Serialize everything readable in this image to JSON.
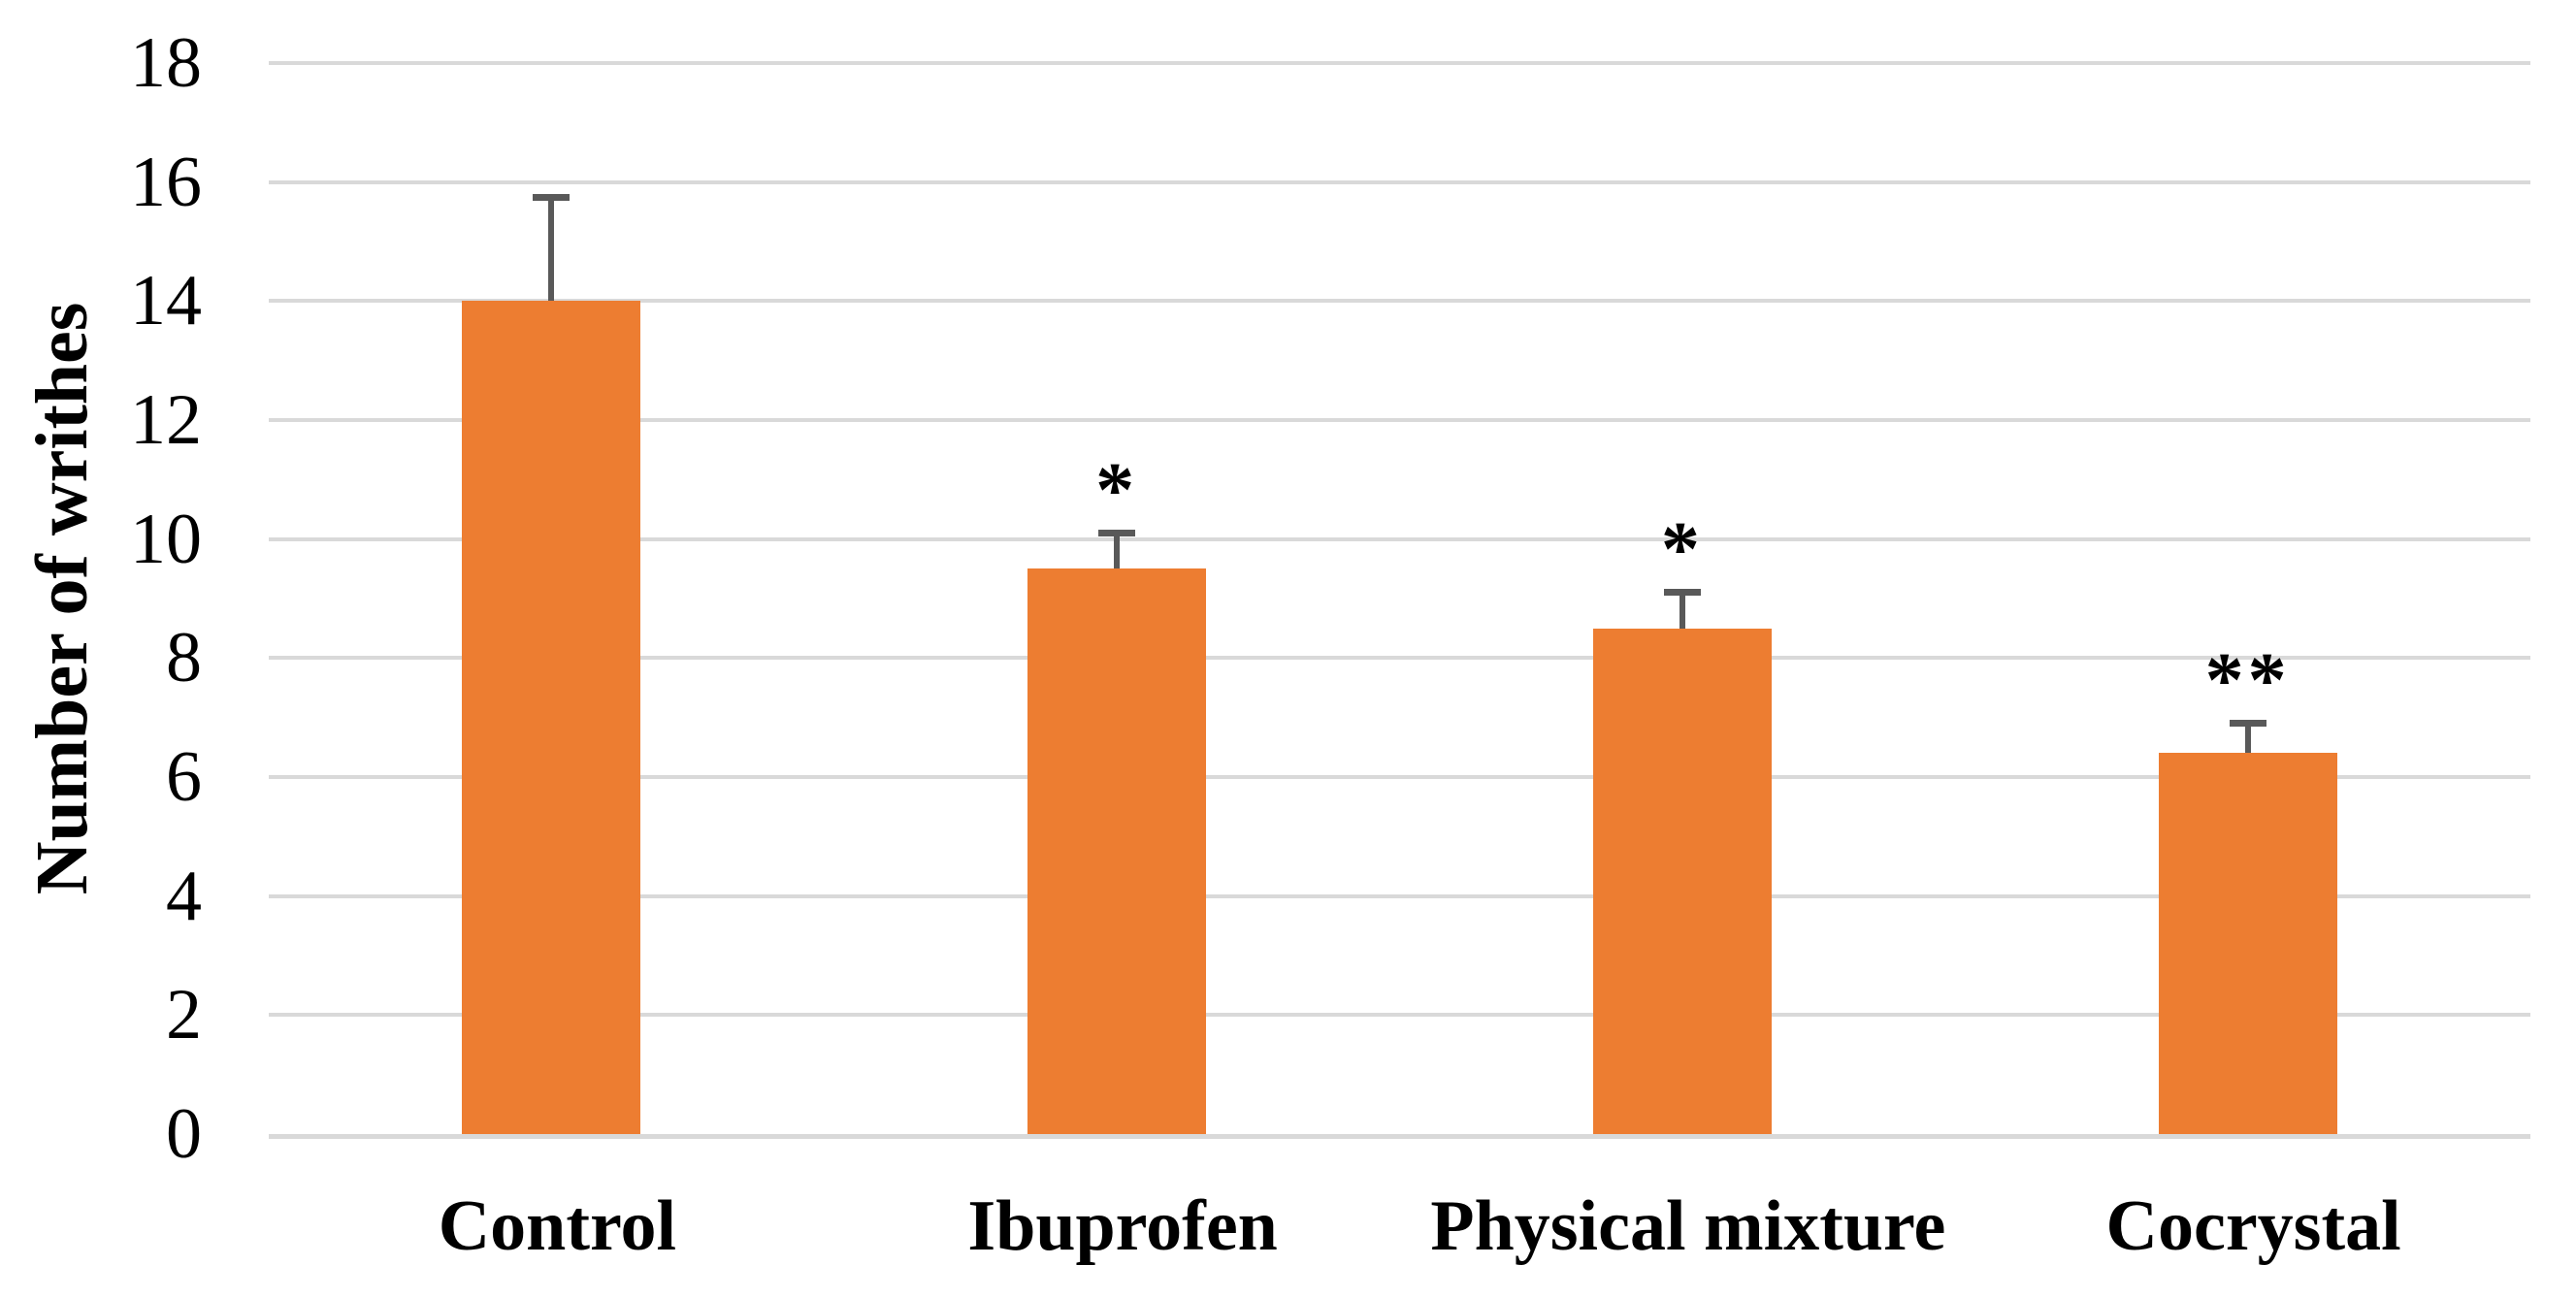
{
  "chart_data": {
    "type": "bar",
    "title": "",
    "xlabel": "",
    "ylabel": "Number of writhes",
    "categories": [
      "Control",
      "Ibuprofen",
      "Physical mixture",
      "Cocrystal"
    ],
    "values": [
      14.0,
      9.5,
      8.5,
      6.4
    ],
    "errors_plus": [
      1.75,
      0.6,
      0.6,
      0.5
    ],
    "significance_markers": [
      "",
      "*",
      "*",
      "**"
    ],
    "ylim": [
      0,
      18
    ],
    "ytick_step": 2,
    "yticks": [
      0,
      2,
      4,
      6,
      8,
      10,
      12,
      14,
      16,
      18
    ],
    "grid": "horizontal-only",
    "legend": "none",
    "colors": {
      "bar": "#ED7D31",
      "error_bar": "#595959",
      "gridline": "#D9D9D9",
      "axis_line": "#D9D9D9",
      "text": "#000000",
      "background": "#FFFFFF"
    }
  }
}
